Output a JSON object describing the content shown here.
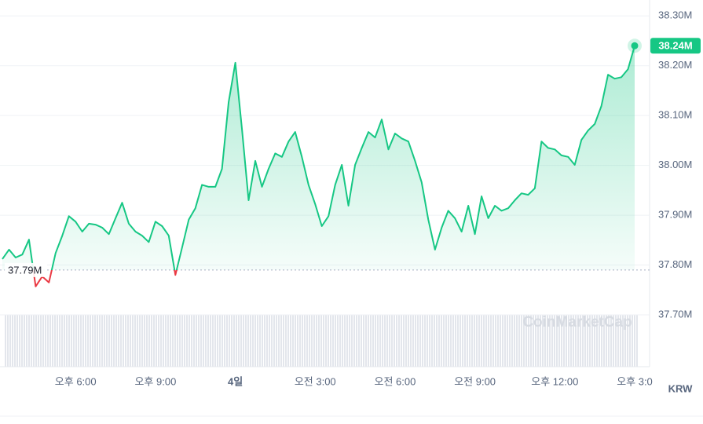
{
  "chart_data": {
    "type": "line",
    "categories": [
      null,
      null,
      null,
      null,
      null,
      null,
      null,
      null,
      null,
      null,
      null,
      "오후 6:00",
      null,
      null,
      null,
      null,
      null,
      null,
      null,
      null,
      null,
      null,
      null,
      "오후 9:00",
      null,
      null,
      null,
      null,
      null,
      null,
      null,
      null,
      null,
      null,
      null,
      "4일",
      null,
      null,
      null,
      null,
      null,
      null,
      null,
      null,
      null,
      null,
      null,
      "오전 3:00",
      null,
      null,
      null,
      null,
      null,
      null,
      null,
      null,
      null,
      null,
      null,
      "오전 6:00",
      null,
      null,
      null,
      null,
      null,
      null,
      null,
      null,
      null,
      null,
      null,
      "오전 9:00",
      null,
      null,
      null,
      null,
      null,
      null,
      null,
      null,
      null,
      null,
      null,
      "오후 12:00",
      null,
      null,
      null,
      null,
      null,
      null,
      null,
      null,
      null,
      null,
      null,
      "오후 3:0"
    ],
    "values": [
      37.812,
      37.831,
      37.815,
      37.821,
      37.851,
      37.757,
      37.777,
      37.765,
      37.824,
      37.859,
      37.898,
      37.887,
      37.867,
      37.883,
      37.881,
      37.875,
      37.862,
      37.894,
      37.925,
      37.883,
      37.867,
      37.859,
      37.846,
      37.887,
      37.878,
      37.859,
      37.78,
      37.835,
      37.891,
      37.914,
      37.961,
      37.957,
      37.957,
      37.993,
      38.127,
      38.206,
      38.072,
      37.93,
      38.009,
      37.957,
      37.993,
      38.024,
      38.017,
      38.048,
      38.067,
      38.017,
      37.961,
      37.922,
      37.878,
      37.898,
      37.961,
      38.001,
      37.919,
      38.001,
      38.035,
      38.067,
      38.056,
      38.092,
      38.032,
      38.064,
      38.054,
      38.048,
      38.009,
      37.966,
      37.891,
      37.831,
      37.875,
      37.909,
      37.894,
      37.867,
      37.919,
      37.862,
      37.938,
      37.894,
      37.919,
      37.909,
      37.914,
      37.93,
      37.944,
      37.941,
      37.954,
      38.048,
      38.035,
      38.032,
      38.02,
      38.017,
      38.001,
      38.051,
      38.07,
      38.083,
      38.119,
      38.182,
      38.174,
      38.177,
      38.193,
      38.24
    ],
    "value_labels": [
      null,
      null,
      null,
      null,
      null,
      null,
      null,
      null,
      null,
      null,
      null,
      null,
      null,
      null,
      null,
      null,
      null,
      null,
      null,
      null,
      null,
      null,
      null,
      null,
      null,
      null,
      null,
      null,
      null,
      null,
      null,
      null,
      null,
      null,
      null,
      null,
      null,
      null,
      null,
      null,
      null,
      null,
      null,
      null,
      null,
      null,
      null,
      null,
      null,
      null,
      null,
      null,
      null,
      null,
      null,
      null,
      null,
      null,
      null,
      null,
      null,
      null,
      null,
      null,
      null,
      null,
      null,
      null,
      null,
      null,
      null,
      null,
      null,
      null,
      null,
      null,
      null,
      null,
      null,
      null,
      null,
      null,
      null,
      null,
      null,
      null,
      null,
      null,
      null,
      null,
      null,
      null,
      null,
      null,
      null,
      "38.24M"
    ],
    "color": "#16c784",
    "down_color": "#ea3943",
    "baseline": {
      "value": 37.79,
      "label": "37.79M"
    },
    "ylim": [
      37.596,
      38.324
    ],
    "yticks": [
      {
        "value": 38.3,
        "label": "38.30M"
      },
      {
        "value": 38.2,
        "label": "38.20M"
      },
      {
        "value": 38.1,
        "label": "38.10M"
      },
      {
        "value": 38.0,
        "label": "38.00M"
      },
      {
        "value": 37.9,
        "label": "37.90M"
      },
      {
        "value": 37.8,
        "label": "37.80M"
      },
      {
        "value": 37.7,
        "label": "37.70M"
      }
    ],
    "grid": true,
    "currency": "KRW",
    "watermark": "CoinMarketCap"
  }
}
